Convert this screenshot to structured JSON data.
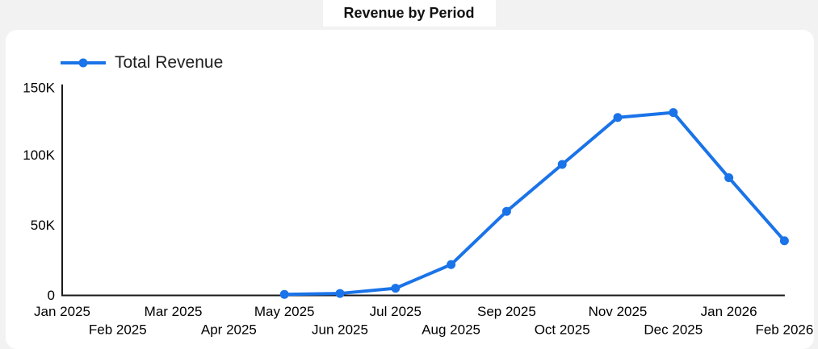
{
  "header": {
    "title": "Revenue by Period"
  },
  "legend": {
    "items": [
      {
        "label": "Total Revenue",
        "color": "#1a73e8"
      }
    ]
  },
  "chart_data": {
    "type": "line",
    "title": "Revenue by Period",
    "categories": [
      "Jan 2025",
      "Feb 2025",
      "Mar 2025",
      "Apr 2025",
      "May 2025",
      "Jun 2025",
      "Jul 2025",
      "Aug 2025",
      "Sep 2025",
      "Oct 2025",
      "Nov 2025",
      "Dec 2025",
      "Jan 2026",
      "Feb 2026"
    ],
    "series": [
      {
        "name": "Total Revenue",
        "color": "#1a73e8",
        "values": [
          null,
          null,
          null,
          null,
          700,
          1400,
          5100,
          22000,
          60000,
          93500,
          127000,
          130500,
          84000,
          39000
        ]
      }
    ],
    "xlabel": "",
    "ylabel": "",
    "ylim": [
      0,
      150000
    ],
    "y_ticks": [
      {
        "value": 0,
        "label": "0"
      },
      {
        "value": 50000,
        "label": "50K"
      },
      {
        "value": 100000,
        "label": "100K"
      },
      {
        "value": 150000,
        "label": "150K"
      }
    ],
    "grid": false,
    "legend_position": "top-left",
    "x_label_stagger": true
  },
  "colors": {
    "page_bg": "#f2f2f2",
    "card_bg": "#ffffff",
    "series_blue": "#1a73e8",
    "axis": "#1a1a1a"
  }
}
